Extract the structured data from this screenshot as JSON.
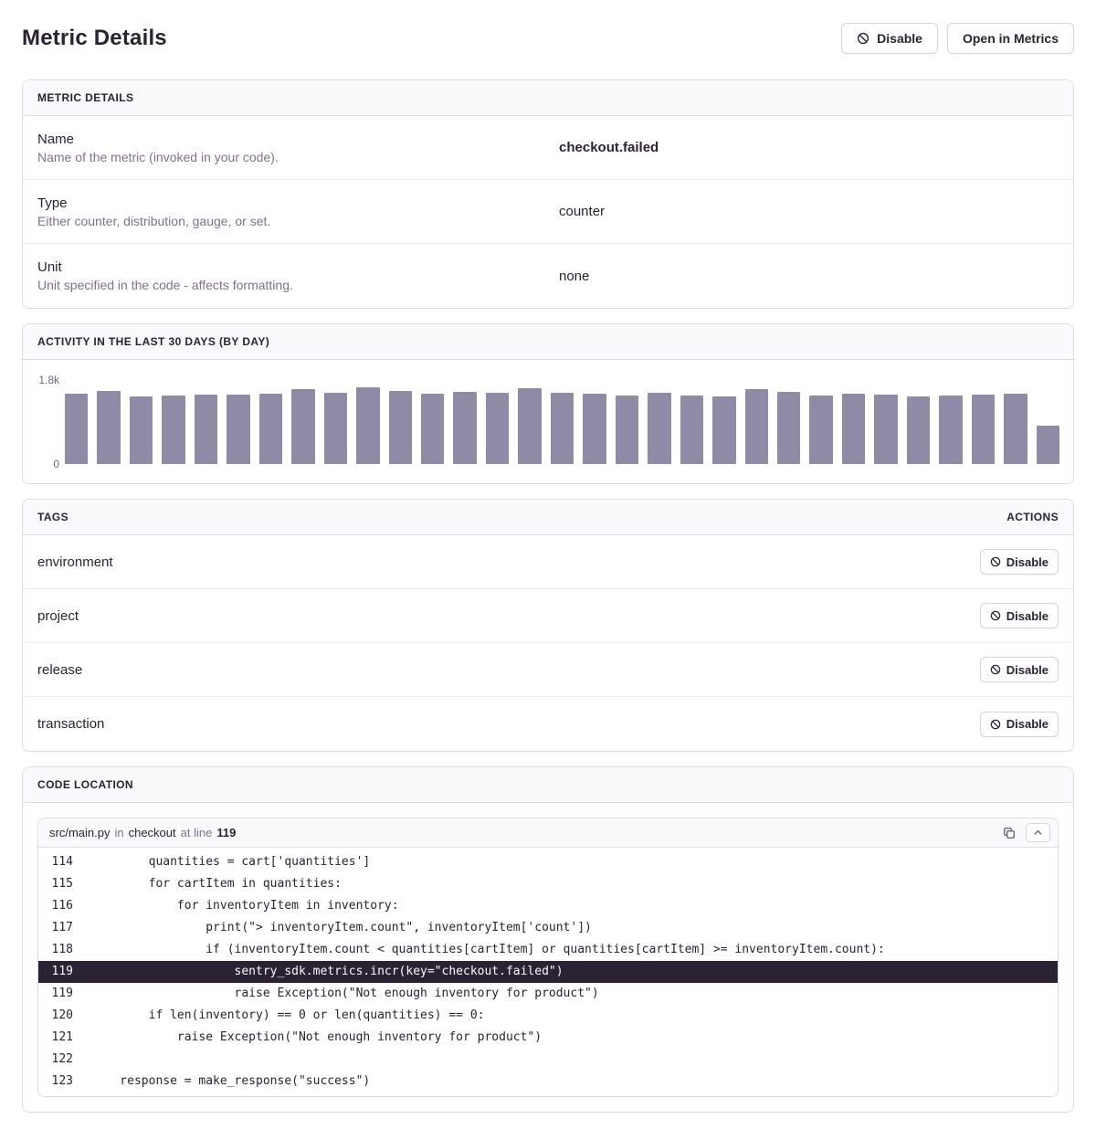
{
  "page": {
    "title": "Metric Details",
    "actions": {
      "disable": "Disable",
      "open_in_metrics": "Open in Metrics"
    }
  },
  "metric_details": {
    "header": "METRIC DETAILS",
    "rows": [
      {
        "label": "Name",
        "description": "Name of the metric (invoked in your code).",
        "value": "checkout.failed"
      },
      {
        "label": "Type",
        "description": "Either counter, distribution, gauge, or set.",
        "value": "counter"
      },
      {
        "label": "Unit",
        "description": "Unit specified in the code - affects formatting.",
        "value": "none"
      }
    ]
  },
  "activity": {
    "header": "ACTIVITY IN THE LAST 30 DAYS (BY DAY)"
  },
  "chart_data": {
    "type": "bar",
    "title": "Activity in the last 30 days (by day)",
    "xlabel": "",
    "ylabel": "",
    "ylim": [
      0,
      1800
    ],
    "ytick_labels": [
      "1.8k",
      "0"
    ],
    "xticks_visible": false,
    "gridlines": false,
    "legend": null,
    "bar_color": "#8d8ba6",
    "values": [
      1500,
      1570,
      1440,
      1460,
      1480,
      1480,
      1510,
      1610,
      1520,
      1640,
      1560,
      1500,
      1550,
      1520,
      1630,
      1520,
      1510,
      1470,
      1530,
      1460,
      1440,
      1600,
      1540,
      1460,
      1500,
      1480,
      1440,
      1470,
      1480,
      1510,
      820
    ]
  },
  "tags": {
    "header": "TAGS",
    "actions_header": "ACTIONS",
    "disable_label": "Disable",
    "items": [
      "environment",
      "project",
      "release",
      "transaction"
    ]
  },
  "code_location": {
    "header": "CODE LOCATION",
    "file": "src/main.py",
    "in_word": "in",
    "function": "checkout",
    "at_line_words": "at line",
    "line_number": "119",
    "lines": [
      {
        "no": "114",
        "text": "        quantities = cart['quantities']"
      },
      {
        "no": "115",
        "text": "        for cartItem in quantities:"
      },
      {
        "no": "116",
        "text": "            for inventoryItem in inventory:"
      },
      {
        "no": "117",
        "text": "                print(\"> inventoryItem.count\", inventoryItem['count'])"
      },
      {
        "no": "118",
        "text": "                if (inventoryItem.count < quantities[cartItem] or quantities[cartItem] >= inventoryItem.count):"
      },
      {
        "no": "119",
        "text": "                    sentry_sdk.metrics.incr(key=\"checkout.failed\")",
        "highlighted": true
      },
      {
        "no": "119",
        "text": "                    raise Exception(\"Not enough inventory for product\")"
      },
      {
        "no": "120",
        "text": "        if len(inventory) == 0 or len(quantities) == 0:"
      },
      {
        "no": "121",
        "text": "            raise Exception(\"Not enough inventory for product\")"
      },
      {
        "no": "122",
        "text": ""
      },
      {
        "no": "123",
        "text": "    response = make_response(\"success\")"
      }
    ]
  },
  "colors": {
    "text_dark": "#2b2233",
    "text_gray": "#80708f",
    "panel_border": "#e0dce5",
    "inner_border": "#f0ecf3",
    "panel_header_bg": "#faf9fb",
    "bar": "#8d8ba6",
    "highlight_line_bg": "#2b2233"
  }
}
